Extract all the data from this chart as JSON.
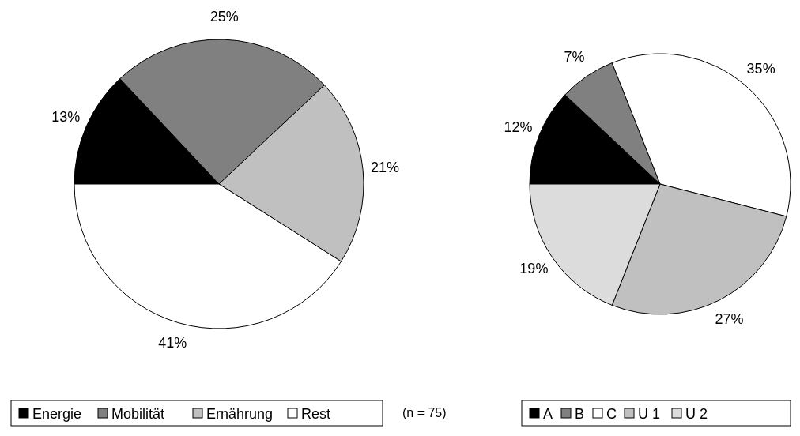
{
  "chart_data": [
    {
      "type": "pie",
      "categories": [
        "Energie",
        "Mobilität",
        "Ernährung",
        "Rest"
      ],
      "values": [
        13,
        25,
        21,
        41
      ],
      "colors": [
        "#000000",
        "#808080",
        "#c0c0c0",
        "#ffffff"
      ],
      "value_labels": [
        "13%",
        "25%",
        "21%",
        "41%"
      ],
      "legend": "bottom",
      "annotations": [
        "(n = 75)"
      ]
    },
    {
      "type": "pie",
      "categories": [
        "A",
        "B",
        "C",
        "U 1",
        "U 2"
      ],
      "values": [
        12,
        7,
        35,
        27,
        19
      ],
      "colors": [
        "#000000",
        "#808080",
        "#ffffff",
        "#c0c0c0",
        "#dcdcdc"
      ],
      "value_labels": [
        "12%",
        "7%",
        "35%",
        "27%",
        "19%"
      ],
      "legend": "bottom"
    }
  ]
}
